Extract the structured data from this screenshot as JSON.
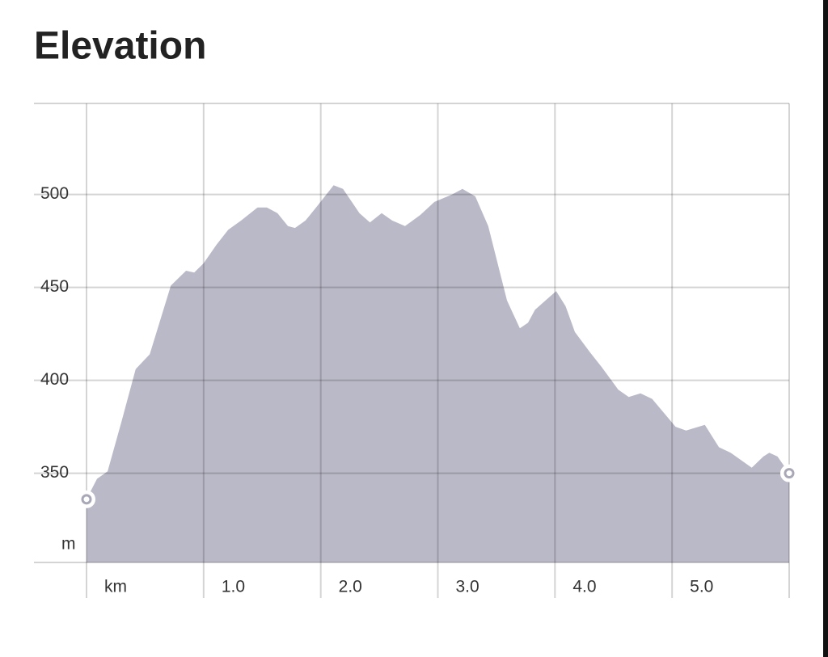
{
  "chart_data": {
    "type": "area",
    "title": "Elevation",
    "x_unit": "km",
    "y_unit": "m",
    "x": [
      0,
      0.09,
      0.18,
      0.3,
      0.42,
      0.54,
      0.72,
      0.85,
      0.92,
      1.0,
      1.11,
      1.21,
      1.32,
      1.46,
      1.54,
      1.63,
      1.72,
      1.78,
      1.87,
      1.96,
      2.11,
      2.19,
      2.33,
      2.42,
      2.52,
      2.61,
      2.72,
      2.85,
      2.97,
      3.12,
      3.21,
      3.32,
      3.43,
      3.59,
      3.7,
      3.77,
      3.83,
      3.92,
      4.01,
      4.09,
      4.17,
      4.3,
      4.4,
      4.54,
      4.63,
      4.73,
      4.83,
      5.03,
      5.12,
      5.28,
      5.4,
      5.5,
      5.68,
      5.78,
      5.83,
      5.9,
      6.0
    ],
    "values": [
      336,
      347,
      351,
      378,
      406,
      414,
      451,
      459,
      458,
      463,
      473,
      481,
      486,
      493,
      493,
      490,
      483,
      482,
      486,
      493,
      505,
      503,
      490,
      485,
      490,
      486,
      483,
      489,
      496,
      500,
      503,
      499,
      483,
      443,
      428,
      431,
      438,
      443,
      448,
      440,
      426,
      415,
      407,
      395,
      391,
      393,
      390,
      375,
      373,
      376,
      364,
      361,
      353,
      359,
      361,
      359,
      350
    ],
    "color": "#bab9c7",
    "xlim": [
      0,
      6
    ],
    "ylim": [
      302,
      549
    ],
    "xticks": [
      {
        "value": 1,
        "label": "1.0"
      },
      {
        "value": 2,
        "label": "2.0"
      },
      {
        "value": 3,
        "label": "3.0"
      },
      {
        "value": 4,
        "label": "4.0"
      },
      {
        "value": 5,
        "label": "5.0"
      }
    ],
    "yticks": [
      350,
      400,
      450,
      500
    ],
    "grid": true
  }
}
